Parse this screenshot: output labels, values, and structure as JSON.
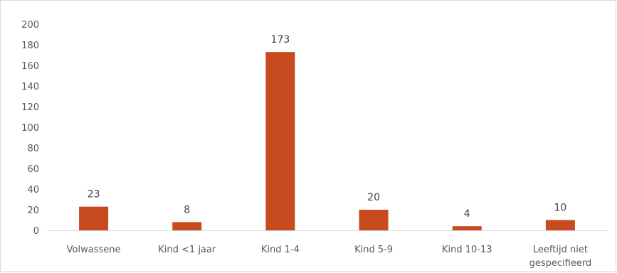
{
  "chart_data": {
    "type": "bar",
    "title": "",
    "xlabel": "",
    "ylabel": "",
    "categories": [
      [
        "Volwassene"
      ],
      [
        "Kind <1 jaar"
      ],
      [
        "Kind 1-4"
      ],
      [
        "Kind 5-9"
      ],
      [
        "Kind 10-13"
      ],
      [
        "Leeftijd niet",
        "gespecifieerd"
      ]
    ],
    "values": [
      23,
      8,
      173,
      20,
      4,
      10
    ],
    "data_labels": [
      "23",
      "8",
      "173",
      "20",
      "4",
      "10"
    ],
    "yticks": [
      "0",
      "20",
      "40",
      "60",
      "80",
      "100",
      "120",
      "140",
      "160",
      "180",
      "200"
    ],
    "ylim": [
      0,
      200
    ],
    "grid": false,
    "legend": "none",
    "bar_color": "#c84b1f",
    "axis_color": "#d9d9d9"
  }
}
